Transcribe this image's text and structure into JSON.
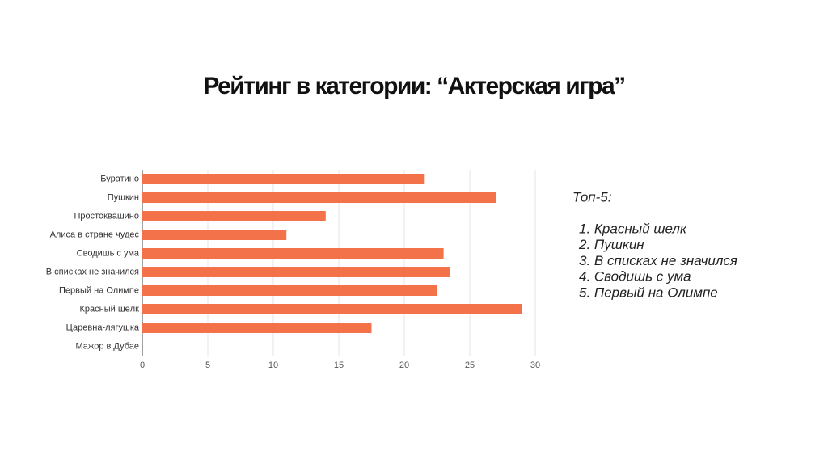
{
  "chart_data": {
    "type": "barh",
    "title": "Рейтинг в категории: “Актерская игра”",
    "categories": [
      "Буратино",
      "Пушкин",
      "Простоквашино",
      "Алиса в стране чудес",
      "Сводишь с ума",
      "В списках не значился",
      "Первый на Олимпе",
      "Красный шёлк",
      "Царевна-лягушка",
      "Мажор в Дубае"
    ],
    "values": [
      21.5,
      27,
      14,
      11,
      23,
      23.5,
      22.5,
      29,
      17.5,
      0
    ],
    "color": "#f47249",
    "xlim": [
      0,
      30
    ],
    "xticks": [
      0,
      5,
      10,
      15,
      20,
      25,
      30
    ],
    "grid": true
  },
  "side_text": {
    "heading": "Топ-5:",
    "items": [
      "1. Красный шелк",
      "2. Пушкин",
      "3. В списках не значился",
      "4. Сводишь с ума",
      "5. Первый на Олимпе"
    ]
  }
}
